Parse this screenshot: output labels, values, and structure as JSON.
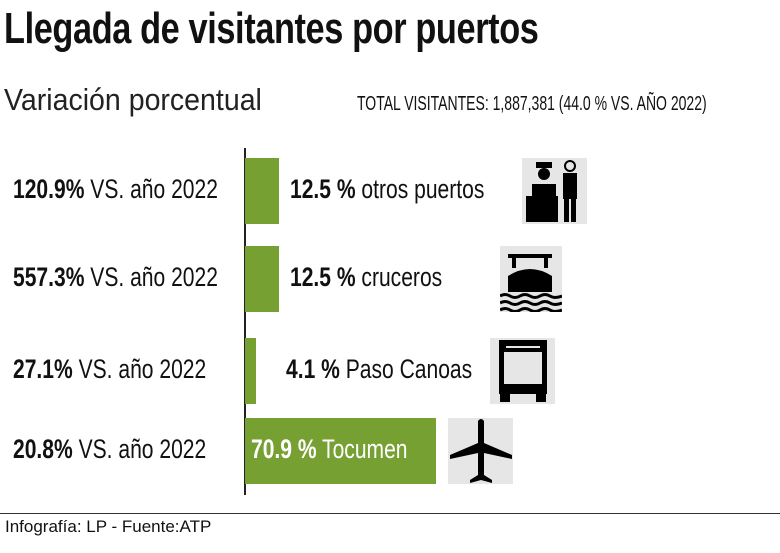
{
  "title": "Llegada de visitantes por puertos",
  "subtitle": "Variación porcentual",
  "total": "TOTAL VISITANTES: 1,887,381 (44.0 % VS. AÑO 2022)",
  "footer": "Infografía: LP - Fuente:ATP",
  "colors": {
    "bar": "#76a032",
    "icon_bg": "#e6e6e6"
  },
  "chart_data": {
    "type": "bar",
    "orientation": "horizontal",
    "categories": [
      "otros puertos",
      "cruceros",
      "Paso Canoas",
      "Tocumen"
    ],
    "values": [
      12.5,
      12.5,
      4.1,
      70.9
    ],
    "value_labels": [
      "12.5 %",
      "12.5 %",
      "4.1 %",
      "70.9 %"
    ],
    "variation_values": [
      "120.9%",
      "557.3%",
      "27.1%",
      "20.8%"
    ],
    "variation_suffix": " VS. año 2022",
    "icons": [
      "officer-icon",
      "ship-icon",
      "bus-icon",
      "airplane-icon"
    ],
    "unit": "%"
  }
}
